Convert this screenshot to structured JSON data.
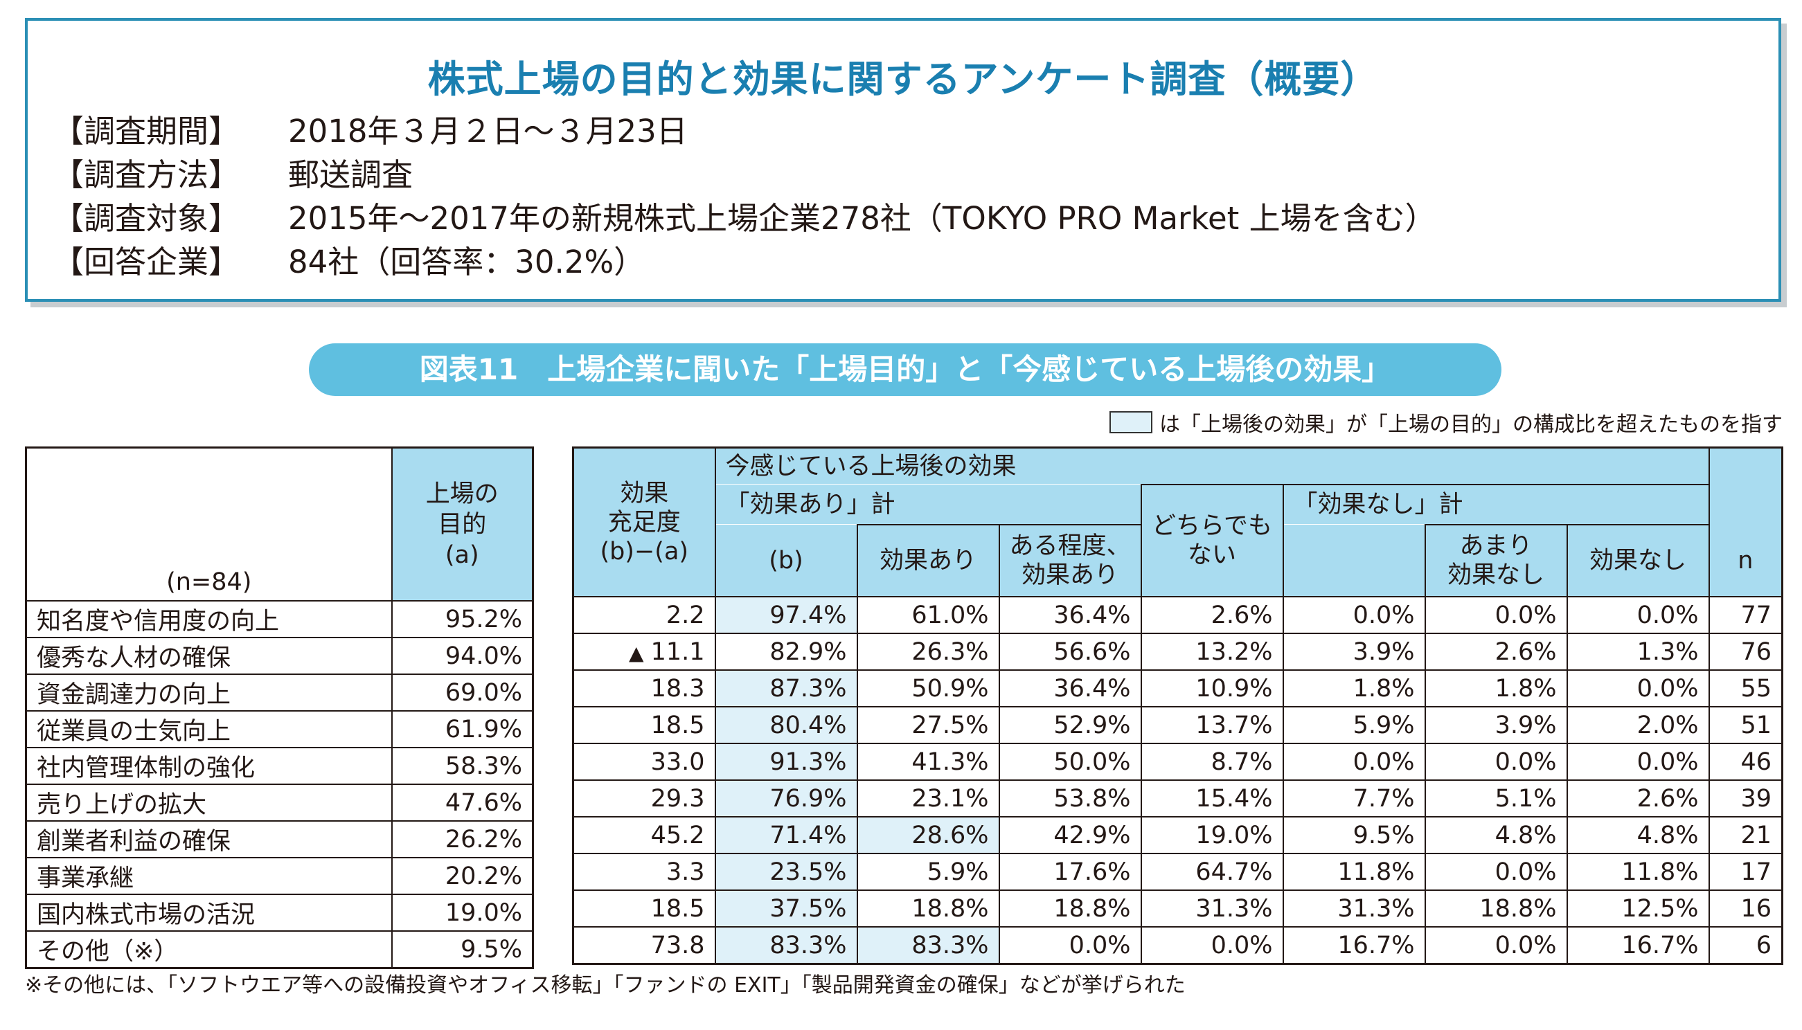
{
  "survey": {
    "title": "株式上場の目的と効果に関するアンケート調査（概要）",
    "rows": [
      {
        "label": "【調査期間】",
        "value": "2018年３月２日～３月23日"
      },
      {
        "label": "【調査方法】",
        "value": "郵送調査"
      },
      {
        "label": "【調査対象】",
        "value": "2015年～2017年の新規株式上場企業278社（TOKYO PRO Market 上場を含む）"
      },
      {
        "label": "【回答企業】",
        "value": "84社（回答率：30.2%）"
      }
    ]
  },
  "figure": {
    "title": "図表11　上場企業に聞いた「上場目的」と「今感じている上場後の効果」",
    "legend_note": "は「上場後の効果」が「上場の目的」の構成比を超えたものを指す",
    "highlight_color": "#dff1f9",
    "header_color": "#a9dcf0"
  },
  "left_table": {
    "sample": "(n=84)",
    "purpose_header": [
      "上場の",
      "目的",
      "(a)"
    ]
  },
  "right_table": {
    "satisfaction_header": [
      "効果",
      "充足度",
      "(b)−(a)"
    ],
    "group_header": "今感じている上場後の効果",
    "effect_yes_total": "「効果あり」計",
    "col_b": "(b)",
    "col_effect": "効果あり",
    "col_some_effect": [
      "ある程度、",
      "効果あり"
    ],
    "col_neither": [
      "どちらでも",
      "ない"
    ],
    "effect_no_total": "「効果なし」計",
    "col_little_effect": [
      "あまり",
      "効果なし"
    ],
    "col_no_effect": "効果なし",
    "col_n": "n"
  },
  "rows": [
    {
      "category": "知名度や信用度の向上",
      "purpose": "95.2%",
      "gap": "2.2",
      "neg": false,
      "b": "97.4%",
      "effect": "61.0%",
      "some": "36.4%",
      "neither": "2.6%",
      "no_total": "0.0%",
      "little": "0.0%",
      "none": "0.0%",
      "n": "77",
      "hl_b": true,
      "hl_effect": false
    },
    {
      "category": "優秀な人材の確保",
      "purpose": "94.0%",
      "gap": "11.1",
      "neg": true,
      "b": "82.9%",
      "effect": "26.3%",
      "some": "56.6%",
      "neither": "13.2%",
      "no_total": "3.9%",
      "little": "2.6%",
      "none": "1.3%",
      "n": "76",
      "hl_b": false,
      "hl_effect": false
    },
    {
      "category": "資金調達力の向上",
      "purpose": "69.0%",
      "gap": "18.3",
      "neg": false,
      "b": "87.3%",
      "effect": "50.9%",
      "some": "36.4%",
      "neither": "10.9%",
      "no_total": "1.8%",
      "little": "1.8%",
      "none": "0.0%",
      "n": "55",
      "hl_b": true,
      "hl_effect": false
    },
    {
      "category": "従業員の士気向上",
      "purpose": "61.9%",
      "gap": "18.5",
      "neg": false,
      "b": "80.4%",
      "effect": "27.5%",
      "some": "52.9%",
      "neither": "13.7%",
      "no_total": "5.9%",
      "little": "3.9%",
      "none": "2.0%",
      "n": "51",
      "hl_b": true,
      "hl_effect": false
    },
    {
      "category": "社内管理体制の強化",
      "purpose": "58.3%",
      "gap": "33.0",
      "neg": false,
      "b": "91.3%",
      "effect": "41.3%",
      "some": "50.0%",
      "neither": "8.7%",
      "no_total": "0.0%",
      "little": "0.0%",
      "none": "0.0%",
      "n": "46",
      "hl_b": true,
      "hl_effect": false
    },
    {
      "category": "売り上げの拡大",
      "purpose": "47.6%",
      "gap": "29.3",
      "neg": false,
      "b": "76.9%",
      "effect": "23.1%",
      "some": "53.8%",
      "neither": "15.4%",
      "no_total": "7.7%",
      "little": "5.1%",
      "none": "2.6%",
      "n": "39",
      "hl_b": true,
      "hl_effect": false
    },
    {
      "category": "創業者利益の確保",
      "purpose": "26.2%",
      "gap": "45.2",
      "neg": false,
      "b": "71.4%",
      "effect": "28.6%",
      "some": "42.9%",
      "neither": "19.0%",
      "no_total": "9.5%",
      "little": "4.8%",
      "none": "4.8%",
      "n": "21",
      "hl_b": true,
      "hl_effect": true
    },
    {
      "category": "事業承継",
      "purpose": "20.2%",
      "gap": "3.3",
      "neg": false,
      "b": "23.5%",
      "effect": "5.9%",
      "some": "17.6%",
      "neither": "64.7%",
      "no_total": "11.8%",
      "little": "0.0%",
      "none": "11.8%",
      "n": "17",
      "hl_b": true,
      "hl_effect": false
    },
    {
      "category": "国内株式市場の活況",
      "purpose": "19.0%",
      "gap": "18.5",
      "neg": false,
      "b": "37.5%",
      "effect": "18.8%",
      "some": "18.8%",
      "neither": "31.3%",
      "no_total": "31.3%",
      "little": "18.8%",
      "none": "12.5%",
      "n": "16",
      "hl_b": true,
      "hl_effect": false
    },
    {
      "category": "その他（※）",
      "purpose": "9.5%",
      "gap": "73.8",
      "neg": false,
      "b": "83.3%",
      "effect": "83.3%",
      "some": "0.0%",
      "neither": "0.0%",
      "no_total": "16.7%",
      "little": "0.0%",
      "none": "16.7%",
      "n": "6",
      "hl_b": true,
      "hl_effect": true
    }
  ],
  "footnote": "※その他には、「ソフトウエア等への設備投資やオフィス移転」「ファンドの EXIT」「製品開発資金の確保」などが挙げられた"
}
